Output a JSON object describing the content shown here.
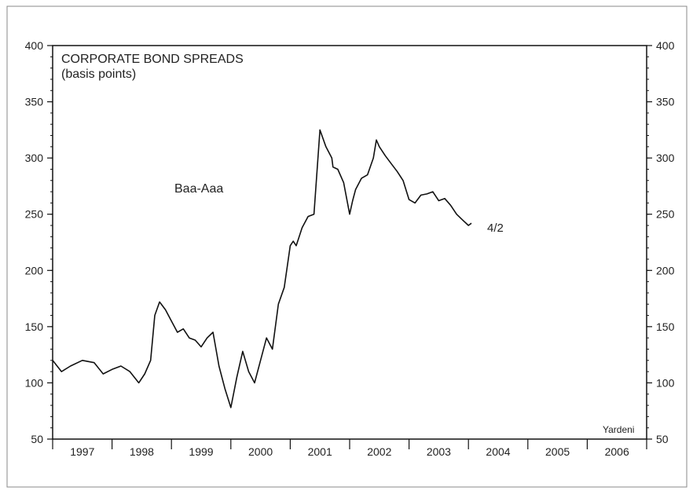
{
  "chart_data": {
    "type": "line",
    "title": "CORPORATE BOND SPREADS",
    "subtitle": "(basis points)",
    "series_label": "Baa-Aaa",
    "end_label": "4/2",
    "source": "Yardeni",
    "ylim": [
      50,
      400
    ],
    "yticks": [
      "50",
      "100",
      "150",
      "200",
      "250",
      "300",
      "350",
      "400"
    ],
    "xlim": [
      1997.0,
      2007.0
    ],
    "xticks": [
      "1997",
      "1998",
      "1999",
      "2000",
      "2001",
      "2002",
      "2003",
      "2004",
      "2005",
      "2006"
    ],
    "grid": false,
    "series": [
      {
        "x": [
          1997.0,
          1997.15,
          1997.3,
          1997.5,
          1997.7,
          1997.85,
          1998.0,
          1998.15,
          1998.3,
          1998.45,
          1998.55,
          1998.65,
          1998.72,
          1998.8,
          1998.9,
          1999.0,
          1999.1,
          1999.2,
          1999.3,
          1999.4,
          1999.5,
          1999.6,
          1999.7,
          1999.8,
          1999.9,
          2000.0,
          2000.1,
          2000.2,
          2000.3,
          2000.4,
          2000.5,
          2000.6,
          2000.7,
          2000.8,
          2000.9,
          2001.0,
          2001.05,
          2001.1,
          2001.2,
          2001.3,
          2001.4,
          2001.5,
          2001.6,
          2001.7,
          2001.72,
          2001.8,
          2001.9,
          2002.0,
          2002.05,
          2002.1,
          2002.2,
          2002.3,
          2002.4,
          2002.45,
          2002.5,
          2002.6,
          2002.7,
          2002.8,
          2002.9,
          2003.0,
          2003.1,
          2003.2,
          2003.3,
          2003.4,
          2003.5,
          2003.6,
          2003.7,
          2003.8,
          2003.9,
          2004.0,
          2004.05
        ],
        "y": [
          120,
          110,
          115,
          120,
          118,
          108,
          112,
          115,
          110,
          100,
          108,
          120,
          160,
          172,
          165,
          155,
          145,
          148,
          140,
          138,
          132,
          140,
          145,
          115,
          95,
          78,
          105,
          128,
          110,
          100,
          120,
          140,
          130,
          170,
          185,
          222,
          226,
          222,
          238,
          248,
          250,
          325,
          310,
          300,
          292,
          290,
          278,
          250,
          262,
          272,
          282,
          285,
          300,
          316,
          310,
          302,
          295,
          288,
          280,
          263,
          260,
          267,
          268,
          270,
          262,
          264,
          258,
          250,
          245,
          240,
          242
        ]
      }
    ]
  }
}
